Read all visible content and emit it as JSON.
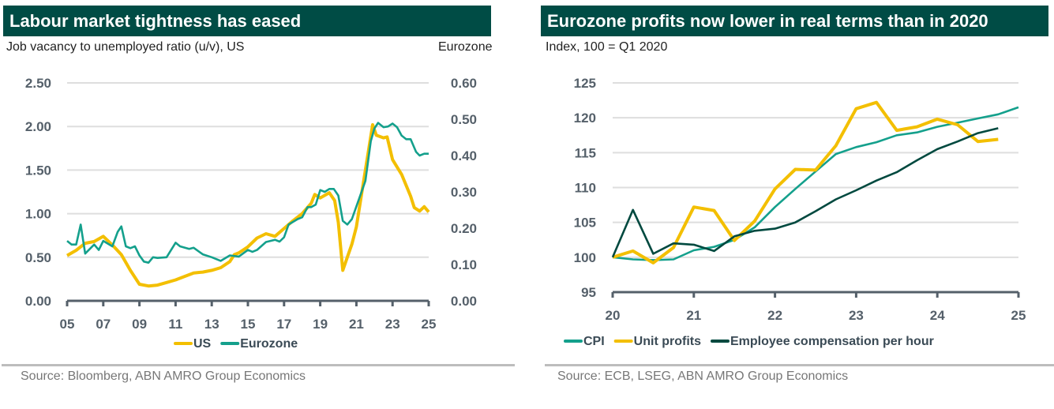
{
  "chart_data": [
    {
      "type": "line",
      "title": "Labour market tightness has eased",
      "subtitle": "Job vacancy to unemployed ratio (u/v), US",
      "right_axis_label": "Eurozone",
      "x_ticks": [
        "05",
        "07",
        "09",
        "11",
        "13",
        "15",
        "17",
        "19",
        "21",
        "23",
        "25"
      ],
      "y_ticks_left": [
        "0.00",
        "0.50",
        "1.00",
        "1.50",
        "2.00",
        "2.50"
      ],
      "ylim_left": [
        0,
        2.5
      ],
      "y_ticks_right": [
        "0.00",
        "0.10",
        "0.20",
        "0.30",
        "0.40",
        "0.50",
        "0.60"
      ],
      "ylim_right": [
        0,
        0.6
      ],
      "xlim": [
        2005,
        2025
      ],
      "grid": true,
      "legend": "bottom",
      "source": "Source: Bloomberg, ABN AMRO Group Economics",
      "series": [
        {
          "name": "US",
          "axis": "left",
          "color": "#f3bf00",
          "points": [
            [
              2005,
              0.52
            ],
            [
              2005.5,
              0.58
            ],
            [
              2006,
              0.66
            ],
            [
              2006.5,
              0.68
            ],
            [
              2007,
              0.74
            ],
            [
              2007.5,
              0.64
            ],
            [
              2008,
              0.53
            ],
            [
              2008.5,
              0.35
            ],
            [
              2009,
              0.19
            ],
            [
              2009.5,
              0.17
            ],
            [
              2010,
              0.18
            ],
            [
              2010.5,
              0.21
            ],
            [
              2011,
              0.24
            ],
            [
              2011.5,
              0.28
            ],
            [
              2012,
              0.32
            ],
            [
              2012.5,
              0.33
            ],
            [
              2013,
              0.35
            ],
            [
              2013.5,
              0.38
            ],
            [
              2014,
              0.45
            ],
            [
              2014.25,
              0.53
            ],
            [
              2014.5,
              0.55
            ],
            [
              2015,
              0.62
            ],
            [
              2015.5,
              0.72
            ],
            [
              2016,
              0.77
            ],
            [
              2016.5,
              0.74
            ],
            [
              2017,
              0.83
            ],
            [
              2017.5,
              0.92
            ],
            [
              2018,
              1.0
            ],
            [
              2018.5,
              1.12
            ],
            [
              2018.7,
              1.22
            ],
            [
              2019,
              1.18
            ],
            [
              2019.5,
              1.24
            ],
            [
              2019.8,
              1.15
            ],
            [
              2020,
              0.9
            ],
            [
              2020.25,
              0.35
            ],
            [
              2020.5,
              0.5
            ],
            [
              2020.75,
              0.65
            ],
            [
              2021,
              0.85
            ],
            [
              2021.5,
              1.5
            ],
            [
              2021.9,
              2.02
            ],
            [
              2022.1,
              1.9
            ],
            [
              2022.5,
              1.87
            ],
            [
              2022.7,
              1.88
            ],
            [
              2023,
              1.62
            ],
            [
              2023.5,
              1.45
            ],
            [
              2024,
              1.2
            ],
            [
              2024.2,
              1.07
            ],
            [
              2024.5,
              1.03
            ],
            [
              2024.75,
              1.08
            ],
            [
              2025,
              1.02
            ]
          ]
        },
        {
          "name": "Eurozone",
          "axis": "right",
          "color": "#14a08c",
          "points": [
            [
              2005,
              0.165
            ],
            [
              2005.25,
              0.155
            ],
            [
              2005.5,
              0.155
            ],
            [
              2005.75,
              0.21
            ],
            [
              2006,
              0.13
            ],
            [
              2006.5,
              0.155
            ],
            [
              2006.75,
              0.14
            ],
            [
              2007,
              0.165
            ],
            [
              2007.5,
              0.15
            ],
            [
              2007.8,
              0.19
            ],
            [
              2008,
              0.205
            ],
            [
              2008.25,
              0.15
            ],
            [
              2008.5,
              0.145
            ],
            [
              2008.75,
              0.15
            ],
            [
              2009,
              0.125
            ],
            [
              2009.25,
              0.108
            ],
            [
              2009.5,
              0.105
            ],
            [
              2009.75,
              0.12
            ],
            [
              2010,
              0.118
            ],
            [
              2010.5,
              0.12
            ],
            [
              2011,
              0.16
            ],
            [
              2011.25,
              0.15
            ],
            [
              2011.75,
              0.143
            ],
            [
              2012,
              0.146
            ],
            [
              2012.5,
              0.128
            ],
            [
              2013,
              0.12
            ],
            [
              2013.5,
              0.11
            ],
            [
              2014,
              0.125
            ],
            [
              2014.5,
              0.122
            ],
            [
              2015,
              0.14
            ],
            [
              2015.25,
              0.135
            ],
            [
              2015.5,
              0.14
            ],
            [
              2016,
              0.162
            ],
            [
              2016.5,
              0.168
            ],
            [
              2016.75,
              0.163
            ],
            [
              2017,
              0.175
            ],
            [
              2017.25,
              0.21
            ],
            [
              2017.75,
              0.225
            ],
            [
              2018,
              0.23
            ],
            [
              2018.3,
              0.258
            ],
            [
              2018.5,
              0.258
            ],
            [
              2018.75,
              0.265
            ],
            [
              2019,
              0.305
            ],
            [
              2019.25,
              0.3
            ],
            [
              2019.5,
              0.308
            ],
            [
              2019.75,
              0.308
            ],
            [
              2020,
              0.29
            ],
            [
              2020.25,
              0.22
            ],
            [
              2020.5,
              0.21
            ],
            [
              2020.75,
              0.225
            ],
            [
              2021,
              0.26
            ],
            [
              2021.5,
              0.33
            ],
            [
              2021.8,
              0.44
            ],
            [
              2022,
              0.475
            ],
            [
              2022.2,
              0.49
            ],
            [
              2022.5,
              0.478
            ],
            [
              2022.75,
              0.48
            ],
            [
              2023,
              0.488
            ],
            [
              2023.25,
              0.478
            ],
            [
              2023.5,
              0.455
            ],
            [
              2023.75,
              0.445
            ],
            [
              2024,
              0.445
            ],
            [
              2024.3,
              0.41
            ],
            [
              2024.5,
              0.4
            ],
            [
              2024.75,
              0.405
            ],
            [
              2025,
              0.405
            ]
          ]
        }
      ]
    },
    {
      "type": "line",
      "title": "Eurozone profits now lower in real terms than in 2020",
      "subtitle": "Index, 100 = Q1 2020",
      "x_ticks": [
        "20",
        "21",
        "22",
        "23",
        "24",
        "25"
      ],
      "xlim": [
        2020,
        2025
      ],
      "y_ticks_left": [
        "95",
        "100",
        "105",
        "110",
        "115",
        "120",
        "125"
      ],
      "ylim_left": [
        95,
        125
      ],
      "grid": true,
      "legend": "bottom",
      "source": "Source: ECB, LSEG, ABN AMRO Group Economics",
      "series": [
        {
          "name": "CPI",
          "color": "#14a08c",
          "start": 2020,
          "step": 0.25,
          "values": [
            100,
            99.7,
            99.6,
            99.7,
            101,
            101.5,
            102.5,
            104.3,
            107.2,
            109.8,
            112.3,
            114.8,
            115.8,
            116.5,
            117.5,
            117.9,
            118.7,
            119.3,
            119.9,
            120.5,
            121.5
          ]
        },
        {
          "name": "Unit profits",
          "color": "#f3bf00",
          "start": 2020,
          "step": 0.25,
          "values": [
            100,
            100.9,
            99.2,
            101.4,
            107.2,
            106.7,
            102.4,
            105.2,
            109.8,
            112.6,
            112.5,
            116,
            121.3,
            122.2,
            118.2,
            118.7,
            119.8,
            119,
            116.6,
            116.9
          ]
        },
        {
          "name": "Employee compensation per hour",
          "color": "#00493f",
          "start": 2020,
          "step": 0.25,
          "values": [
            100,
            106.8,
            100.5,
            102,
            101.8,
            100.9,
            103,
            103.8,
            104.1,
            105,
            106.6,
            108.3,
            109.6,
            111,
            112.2,
            113.9,
            115.5,
            116.6,
            117.8,
            118.5
          ]
        }
      ]
    }
  ]
}
